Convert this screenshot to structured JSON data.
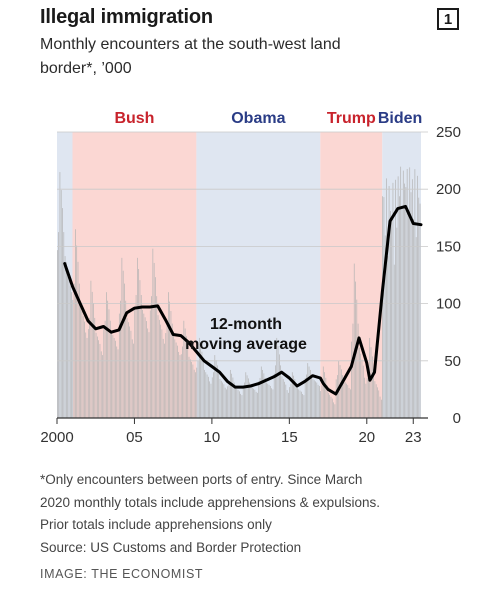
{
  "header": {
    "title": "Illegal immigration",
    "subtitle": "Monthly encounters at the south-west land border*, ’000",
    "badge": "1"
  },
  "notes": [
    "*Only encounters between ports of entry. Since March",
    "2020 monthly totals include apprehensions & expulsions.",
    "Prior totals include apprehensions only",
    "Source: US Customs and Border Protection"
  ],
  "credit": "IMAGE: THE ECONOMIST",
  "colors": {
    "republican_band": "#fbd7d3",
    "democrat_band": "#dfe6f1",
    "republican_text": "#c8232c",
    "democrat_text": "#2a3c86",
    "bars": "#b3b3b3",
    "line": "#000000"
  },
  "chart_data": {
    "type": "bar",
    "x_range": [
      2000,
      2023.5
    ],
    "ylim": [
      0,
      250
    ],
    "yticks": [
      0,
      50,
      100,
      150,
      200,
      250
    ],
    "xticks": [
      {
        "value": 2000,
        "label": "2000"
      },
      {
        "value": 2005,
        "label": "05"
      },
      {
        "value": 2010,
        "label": "10"
      },
      {
        "value": 2015,
        "label": "15"
      },
      {
        "value": 2020,
        "label": "20"
      },
      {
        "value": 2023,
        "label": "23"
      }
    ],
    "grid": true,
    "presidencies": [
      {
        "name": "Bush",
        "start": 2001,
        "end": 2009,
        "party": "R"
      },
      {
        "name": "Obama",
        "start": 2009,
        "end": 2017,
        "party": "D"
      },
      {
        "name": "Trump",
        "start": 2017,
        "end": 2021,
        "party": "R"
      },
      {
        "name": "Biden",
        "start": 2021,
        "end": 2023.5,
        "party": "D"
      }
    ],
    "series": [
      {
        "type": "bar",
        "frequency": "monthly",
        "start": 2000,
        "note": "Annual peak and trough values; monthly bars follow a seasonal cycle between them",
        "annual_peak": [
          {
            "year": 2000,
            "value": 215
          },
          {
            "year": 2001,
            "value": 165
          },
          {
            "year": 2002,
            "value": 120
          },
          {
            "year": 2003,
            "value": 110
          },
          {
            "year": 2004,
            "value": 140
          },
          {
            "year": 2005,
            "value": 140
          },
          {
            "year": 2006,
            "value": 148
          },
          {
            "year": 2007,
            "value": 110
          },
          {
            "year": 2008,
            "value": 85
          },
          {
            "year": 2009,
            "value": 70
          },
          {
            "year": 2010,
            "value": 55
          },
          {
            "year": 2011,
            "value": 42
          },
          {
            "year": 2012,
            "value": 40
          },
          {
            "year": 2013,
            "value": 45
          },
          {
            "year": 2014,
            "value": 70
          },
          {
            "year": 2015,
            "value": 40
          },
          {
            "year": 2016,
            "value": 48
          },
          {
            "year": 2017,
            "value": 45
          },
          {
            "year": 2018,
            "value": 50
          },
          {
            "year": 2019,
            "value": 135
          },
          {
            "year": 2020,
            "value": 70
          },
          {
            "year": 2021,
            "value": 210
          },
          {
            "year": 2022,
            "value": 220
          },
          {
            "year": 2023,
            "value": 218
          }
        ],
        "annual_trough": [
          {
            "year": 2000,
            "value": 110
          },
          {
            "year": 2001,
            "value": 70
          },
          {
            "year": 2002,
            "value": 55
          },
          {
            "year": 2003,
            "value": 60
          },
          {
            "year": 2004,
            "value": 65
          },
          {
            "year": 2005,
            "value": 75
          },
          {
            "year": 2006,
            "value": 65
          },
          {
            "year": 2007,
            "value": 55
          },
          {
            "year": 2008,
            "value": 40
          },
          {
            "year": 2009,
            "value": 30
          },
          {
            "year": 2010,
            "value": 25
          },
          {
            "year": 2011,
            "value": 20
          },
          {
            "year": 2012,
            "value": 22
          },
          {
            "year": 2013,
            "value": 25
          },
          {
            "year": 2014,
            "value": 22
          },
          {
            "year": 2015,
            "value": 20
          },
          {
            "year": 2016,
            "value": 28
          },
          {
            "year": 2017,
            "value": 12
          },
          {
            "year": 2018,
            "value": 25
          },
          {
            "year": 2019,
            "value": 30
          },
          {
            "year": 2020,
            "value": 16
          },
          {
            "year": 2021,
            "value": 75
          },
          {
            "year": 2022,
            "value": 150
          },
          {
            "year": 2023,
            "value": 100
          }
        ]
      },
      {
        "name": "12-month moving average",
        "type": "line",
        "x": [
          2000.5,
          2001,
          2001.5,
          2002,
          2002.5,
          2003,
          2003.5,
          2004,
          2004.5,
          2005,
          2005.5,
          2006,
          2006.5,
          2007,
          2007.5,
          2008,
          2008.5,
          2009,
          2009.5,
          2010,
          2010.5,
          2011,
          2011.5,
          2012,
          2012.5,
          2013,
          2013.5,
          2014,
          2014.5,
          2015,
          2015.5,
          2016,
          2016.5,
          2017,
          2017.2,
          2017.5,
          2018,
          2018.5,
          2019,
          2019.5,
          2020,
          2020.2,
          2020.5,
          2021,
          2021.5,
          2022,
          2022.5,
          2023,
          2023.5
        ],
        "y": [
          135,
          115,
          100,
          85,
          78,
          80,
          75,
          77,
          92,
          96,
          97,
          97,
          98,
          86,
          73,
          72,
          66,
          58,
          50,
          45,
          40,
          32,
          27,
          27,
          28,
          30,
          33,
          36,
          40,
          35,
          28,
          32,
          37,
          35,
          30,
          25,
          21,
          33,
          45,
          70,
          48,
          33,
          40,
          110,
          172,
          183,
          185,
          170,
          169
        ]
      }
    ]
  }
}
